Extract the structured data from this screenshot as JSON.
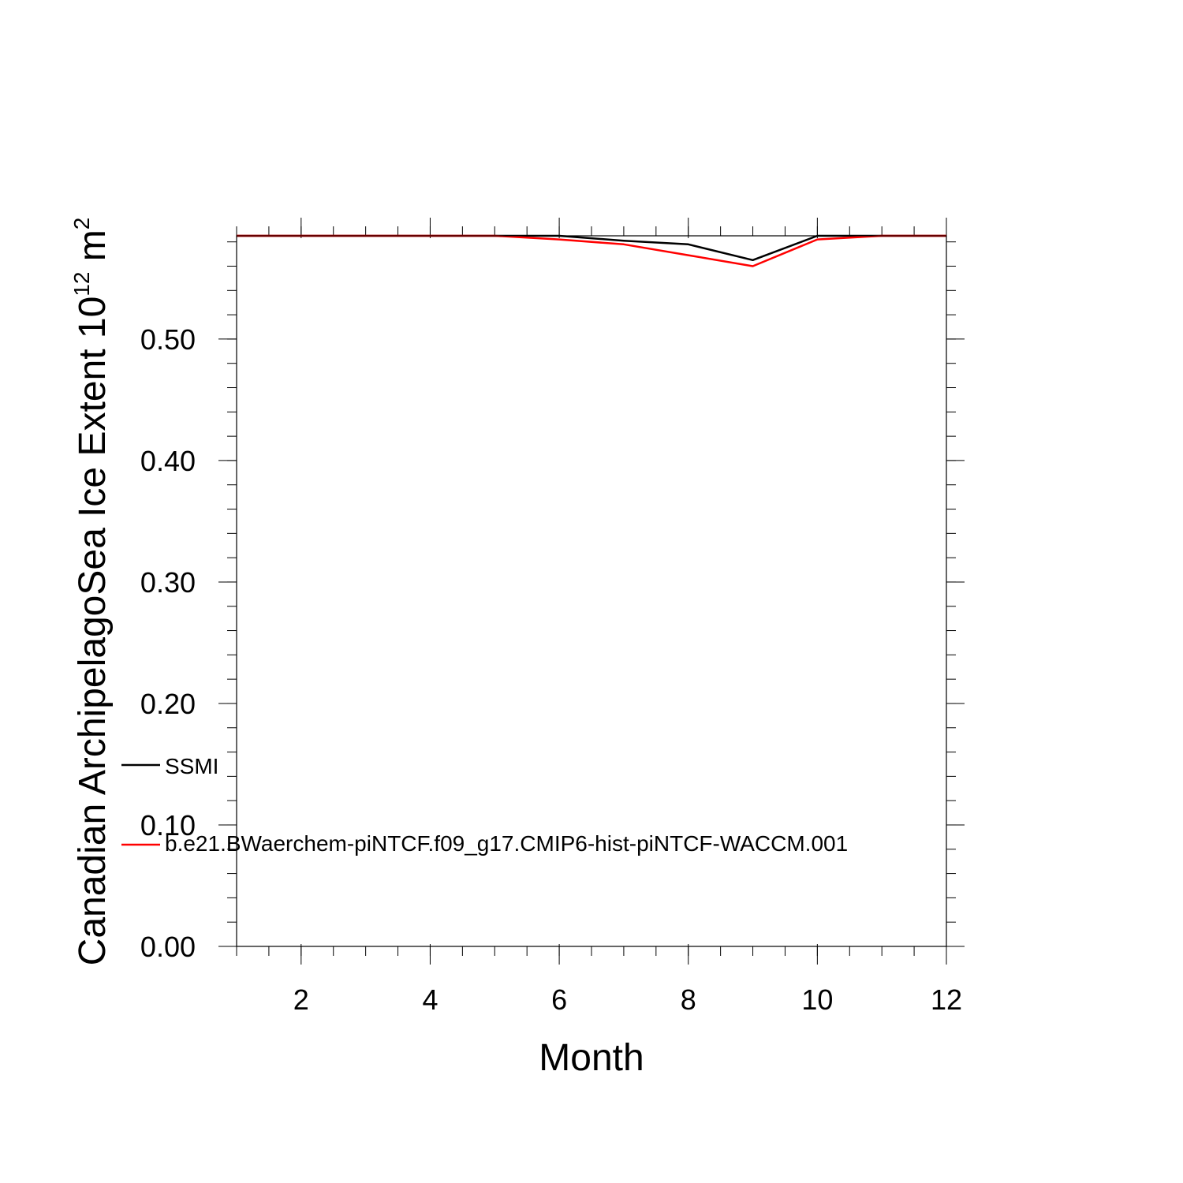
{
  "chart_data": {
    "type": "line",
    "title": "",
    "xlabel": "Month",
    "ylabel_main": "Canadian ArchipelagoSea Ice Extent 10",
    "ylabel_sup": "12",
    "ylabel_tail": " m",
    "ylabel_sup2": "2",
    "xlim": [
      1,
      12
    ],
    "ylim": [
      0,
      0.585
    ],
    "x_ticks": [
      2,
      4,
      6,
      8,
      10,
      12
    ],
    "x_tick_labels": [
      "2",
      "4",
      "6",
      "8",
      "10",
      "12"
    ],
    "y_ticks": [
      0,
      0.1,
      0.2,
      0.3,
      0.4,
      0.5
    ],
    "y_tick_labels": [
      "0.00",
      "0.10",
      "0.20",
      "0.30",
      "0.40",
      "0.50"
    ],
    "grid": false,
    "legend_placement": "bottom-left",
    "x": [
      1,
      2,
      3,
      4,
      5,
      6,
      7,
      8,
      9,
      10,
      11,
      12
    ],
    "series": [
      {
        "name": "SSMI",
        "color": "#000000",
        "values": [
          0.585,
          0.585,
          0.585,
          0.585,
          0.585,
          0.585,
          0.581,
          0.578,
          0.565,
          0.585,
          0.585,
          0.585
        ]
      },
      {
        "name": "b.e21.BWaerchem-piNTCF.f09_g17.CMIP6-hist-piNTCF-WACCM.001",
        "color": "#ff0000",
        "values": [
          0.585,
          0.585,
          0.585,
          0.585,
          0.585,
          0.582,
          0.578,
          0.569,
          0.56,
          0.582,
          0.585,
          0.585
        ]
      }
    ]
  }
}
